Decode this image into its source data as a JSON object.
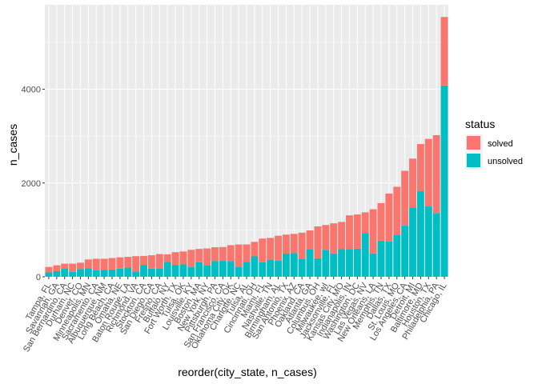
{
  "chart_data": {
    "type": "bar",
    "stacked": true,
    "xlabel": "reorder(city_state, n_cases)",
    "ylabel": "n_cases",
    "ylim": [
      0,
      5800
    ],
    "yticks": [
      0,
      2000,
      4000
    ],
    "yticklabels": [
      "0",
      "2000",
      "4000"
    ],
    "grid": true,
    "legend": {
      "title": "status",
      "position": "right",
      "items": [
        {
          "label": "solved",
          "color": "#F8766D"
        },
        {
          "label": "unsolved",
          "color": "#00BFC4"
        }
      ]
    },
    "categories": [
      "Tampa, FL",
      "Savannah, GA",
      "San Bernardino, CA",
      "Durham, NC",
      "Denver, CO",
      "Minneapolis, MN",
      "Sacramento, CA",
      "Albuquerque, NM",
      "Long Beach, CA",
      "Omaha, NE",
      "Baton Rouge, LA",
      "Richmond, VA",
      "Stockton, CA",
      "San Diego, CA",
      "Fresno, CA",
      "Buffalo, NY",
      "Fort Worth, TX",
      "Tulsa, OK",
      "Louisville, KY",
      "Boston, MA",
      "New York, NY",
      "Pittsburgh, PA",
      "San Francisco, CA",
      "Oklahoma City, OK",
      "Charlotte, NC",
      "Tulsa, AL",
      "Cincinnati, OH",
      "Miami, FL",
      "Nashville, TN",
      "Birmingham, AL",
      "San Antonio, TX",
      "Phoenix, AZ",
      "Oakland, CA",
      "Atlanta, GA",
      "Columbus, OH",
      "Milwaukee, wI",
      "Jacksonville, FL",
      "Kansas City, MO",
      "Indianapolis, IN",
      "Washington, DC",
      "Las Vegas, NV",
      "New Orleans, LA",
      "Memphis, TN",
      "Dallas, TX",
      "St. Louis, MO",
      "Los Angeles, CA",
      "Detroit, MI",
      "Baltimore, MD",
      "Houston, TX",
      "Philadelphia, PA",
      "Chicago, IL"
    ],
    "series": [
      {
        "name": "unsolved",
        "values": [
          95,
          120,
          170,
          105,
          165,
          185,
          140,
          145,
          155,
          175,
          195,
          115,
          255,
          175,
          170,
          315,
          255,
          265,
          205,
          310,
          245,
          335,
          340,
          335,
          205,
          320,
          435,
          310,
          365,
          345,
          495,
          505,
          375,
          580,
          395,
          575,
          500,
          595,
          590,
          600,
          930,
          500,
          770,
          755,
          900,
          1090,
          1480,
          1830,
          1500,
          1360,
          4080
        ]
      },
      {
        "name": "solved",
        "values": [
          115,
          125,
          110,
          175,
          135,
          185,
          245,
          240,
          245,
          240,
          230,
          325,
          190,
          285,
          315,
          165,
          270,
          275,
          370,
          285,
          360,
          295,
          295,
          340,
          485,
          370,
          310,
          505,
          465,
          530,
          405,
          410,
          565,
          410,
          680,
          530,
          640,
          575,
          720,
          730,
          445,
          940,
          800,
          1020,
          1020,
          1170,
          1040,
          1000,
          1440,
          1660,
          1460
        ]
      }
    ]
  }
}
